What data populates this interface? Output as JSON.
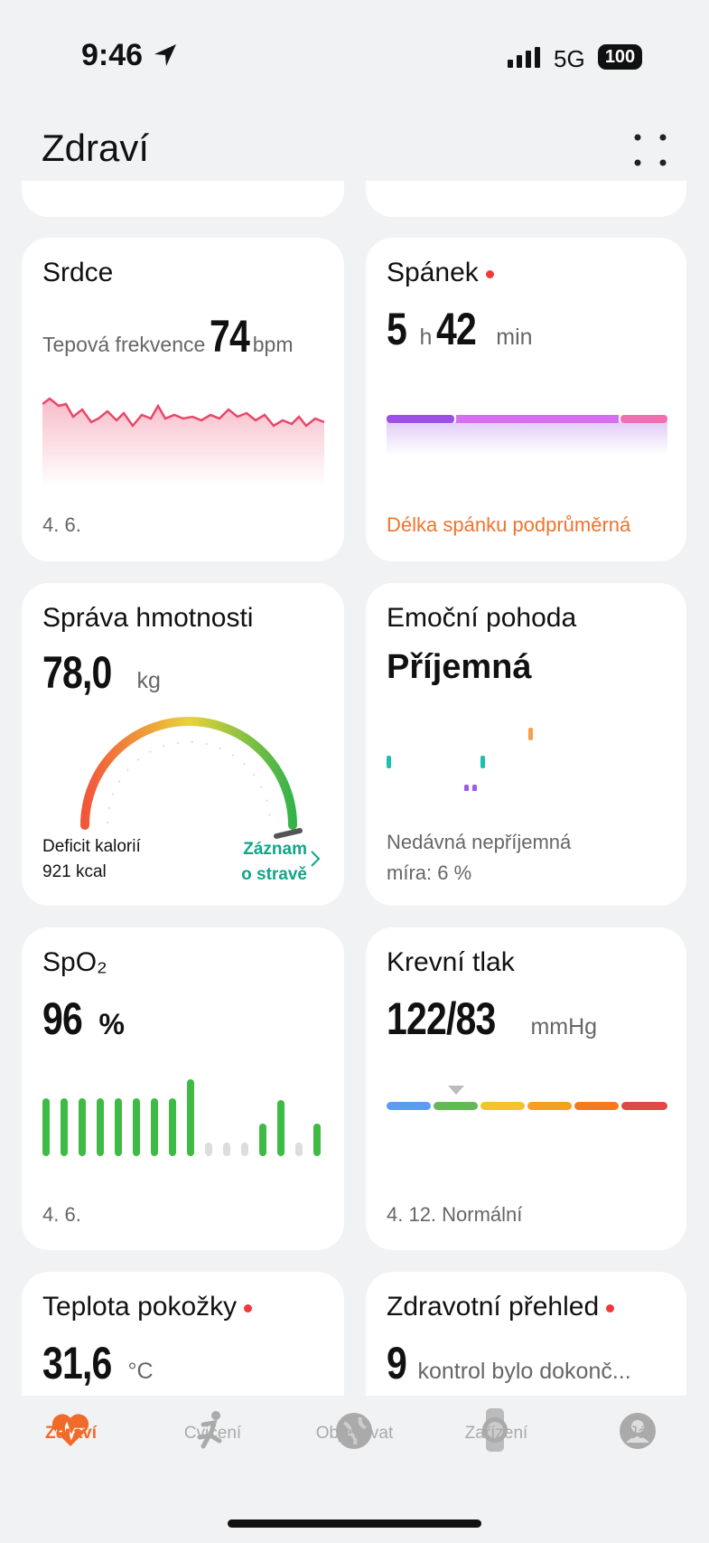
{
  "status_bar": {
    "time": "9:46",
    "network": "5G",
    "battery": "100"
  },
  "header": {
    "title": "Zdraví"
  },
  "cards": [
    {
      "title": "Srdce",
      "label": "Tepová frekvence",
      "value": "74",
      "unit": "bpm",
      "footer": "4. 6."
    },
    {
      "title": "Spánek",
      "hours": "5",
      "hours_unit": "h",
      "minutes": "42",
      "minutes_unit": "min",
      "footer": "Délka spánku podprůměrná"
    },
    {
      "title": "Správa hmotnosti",
      "value": "78,0",
      "unit": "kg",
      "deficit_label": "Deficit kalorií",
      "deficit_value": "921 kcal",
      "link_line1": "Záznam",
      "link_line2": "o stravě"
    },
    {
      "title": "Emoční pohoda",
      "value": "Příjemná",
      "footer_line1": "Nedávná nepříjemná",
      "footer_line2": "míra: 6 %"
    },
    {
      "title": "SpO₂",
      "value": "96",
      "unit": "%",
      "footer": "4. 6."
    },
    {
      "title": "Krevní tlak",
      "value": "122/83",
      "unit": "mmHg",
      "footer": "4. 12. Normální"
    },
    {
      "title": "Teplota pokožky",
      "value": "31,6",
      "unit": "°C"
    },
    {
      "title": "Zdravotní přehled",
      "value": "9",
      "unit": "kontrol bylo dokonč..."
    }
  ],
  "tabs": [
    "Zdraví",
    "Cvičení",
    "Objevovat",
    "Zařízení",
    "Já"
  ]
}
